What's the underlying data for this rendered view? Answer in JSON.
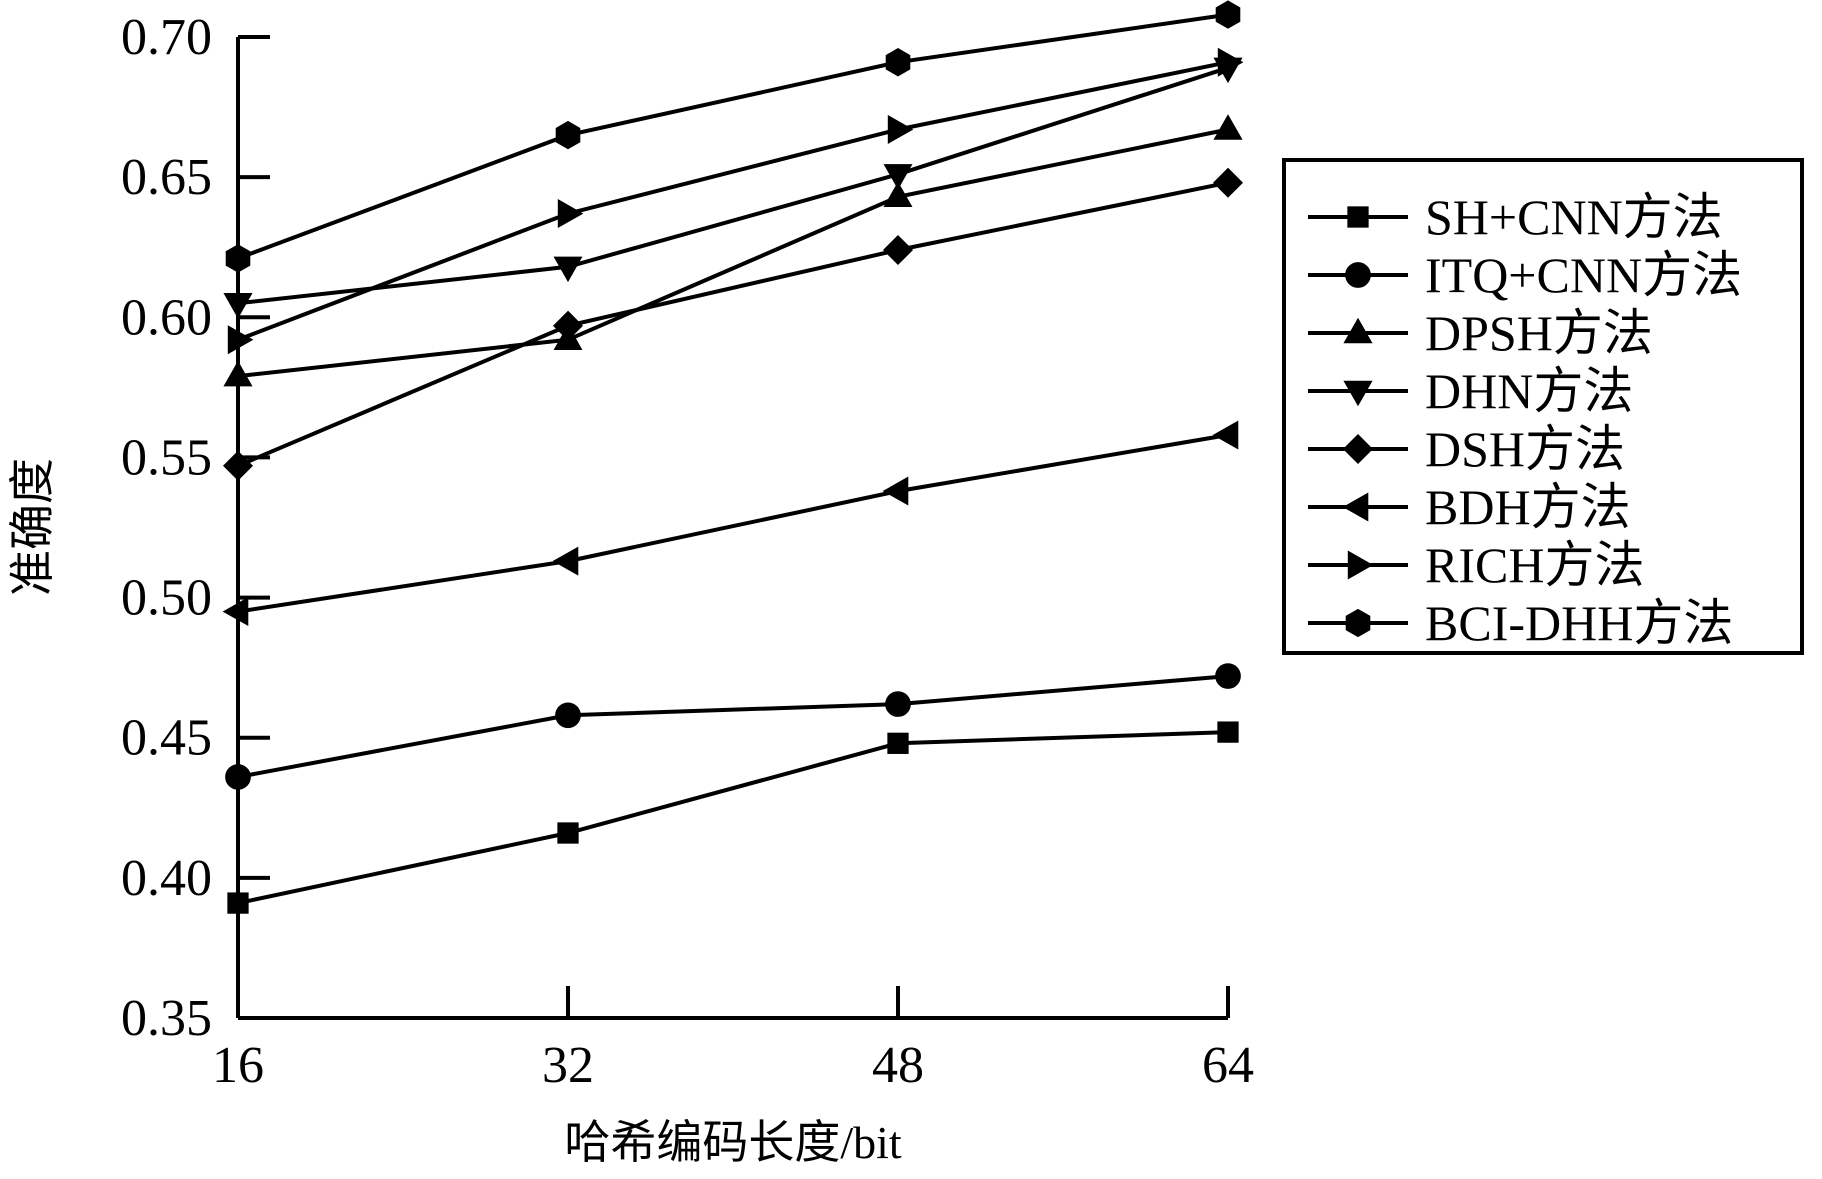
{
  "chart_data": {
    "type": "line",
    "title": "",
    "xlabel": "哈希编码长度/bit",
    "ylabel": "准确度",
    "x": [
      16,
      32,
      48,
      64
    ],
    "xticks": [
      "16",
      "32",
      "48",
      "64"
    ],
    "yticks": [
      "0.35",
      "0.40",
      "0.45",
      "0.50",
      "0.55",
      "0.60",
      "0.65",
      "0.70"
    ],
    "ylim": [
      0.35,
      0.7
    ],
    "grid": false,
    "legend_position": "right",
    "series": [
      {
        "name": "SH+CNN方法",
        "marker": "square",
        "values": [
          0.391,
          0.416,
          0.448,
          0.452
        ]
      },
      {
        "name": "ITQ+CNN方法",
        "marker": "circle",
        "values": [
          0.436,
          0.458,
          0.462,
          0.472
        ]
      },
      {
        "name": "DPSH方法",
        "marker": "triangle-up",
        "values": [
          0.579,
          0.592,
          0.643,
          0.667
        ]
      },
      {
        "name": "DHN方法",
        "marker": "triangle-down",
        "values": [
          0.605,
          0.618,
          0.651,
          0.689
        ]
      },
      {
        "name": "DSH方法",
        "marker": "diamond",
        "values": [
          0.547,
          0.597,
          0.624,
          0.648
        ]
      },
      {
        "name": "BDH方法",
        "marker": "triangle-left",
        "values": [
          0.495,
          0.513,
          0.538,
          0.558
        ]
      },
      {
        "name": "RICH方法",
        "marker": "triangle-right",
        "values": [
          0.592,
          0.637,
          0.667,
          0.691
        ]
      },
      {
        "name": "BCI-DHH方法",
        "marker": "hexagon",
        "values": [
          0.621,
          0.665,
          0.691,
          0.708
        ]
      }
    ]
  },
  "colors": {
    "line": "#000000",
    "background": "#ffffff"
  }
}
